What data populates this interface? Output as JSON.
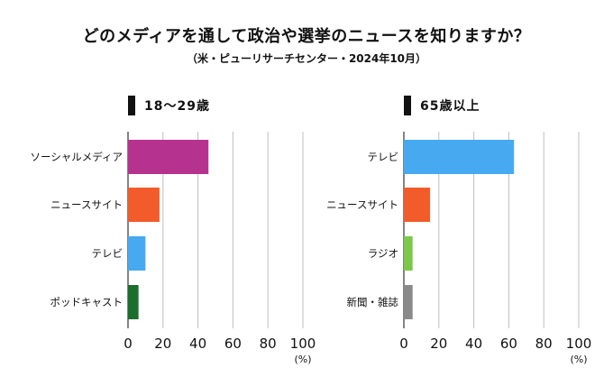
{
  "title": "どのメディアを通して政治や選挙のニュースを知りますか？",
  "subtitle": "（米・ピューリサーチセンター・2024年10月）",
  "chart_data": [
    {
      "type": "bar",
      "orientation": "horizontal",
      "panel_label": "18〜29歳",
      "categories": [
        "ソーシャルメディア",
        "ニュースサイト",
        "テレビ",
        "ポッドキャスト"
      ],
      "values": [
        46,
        18,
        10,
        6
      ],
      "colors": [
        "#b5338f",
        "#f25c2b",
        "#47aaf0",
        "#1b6e2c"
      ],
      "xticks": [
        "0",
        "20",
        "40",
        "60",
        "80",
        "100"
      ],
      "xlim": [
        0,
        100
      ],
      "xunit": "(%)",
      "grid": true
    },
    {
      "type": "bar",
      "orientation": "horizontal",
      "panel_label": "65歳以上",
      "categories": [
        "テレビ",
        "ニュースサイト",
        "ラジオ",
        "新聞・雑誌"
      ],
      "values": [
        63,
        15,
        5,
        5
      ],
      "colors": [
        "#47aaf0",
        "#f25c2b",
        "#7cc84a",
        "#8a8a8a"
      ],
      "xticks": [
        "0",
        "20",
        "40",
        "60",
        "80",
        "100"
      ],
      "xlim": [
        0,
        100
      ],
      "xunit": "(%)",
      "grid": true
    }
  ]
}
